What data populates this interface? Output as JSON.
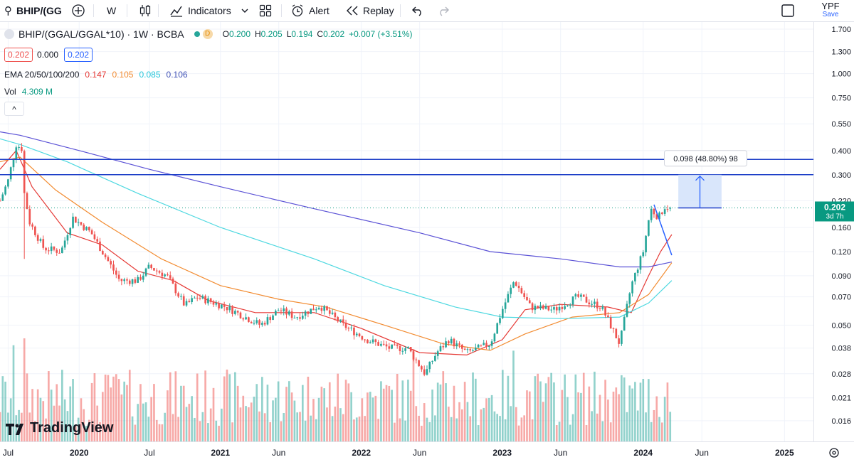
{
  "toolbar": {
    "symbol": "BHIP/(GG",
    "interval": "W",
    "indicators": "Indicators",
    "alert": "Alert",
    "replay": "Replay",
    "right_symbol": "YPF",
    "right_save": "Save"
  },
  "legend": {
    "title": "BHIP/(GGAL/GGAL*10) · 1W · BCBA",
    "d_badge": "D",
    "ohlc": {
      "o_label": "O",
      "o": "0.200",
      "h_label": "H",
      "h": "0.205",
      "l_label": "L",
      "l": "0.194",
      "c_label": "C",
      "c": "0.202",
      "change": "+0.007 (+3.51%)"
    },
    "price_boxes": [
      "0.202",
      "0.000",
      "0.202"
    ],
    "ema_label": "EMA 20/50/100/200",
    "ema_values": [
      "0.147",
      "0.105",
      "0.085",
      "0.106"
    ],
    "vol_label": "Vol",
    "vol_value": "4.309 M",
    "collapse": "^"
  },
  "colors": {
    "up": "#26a69a",
    "down": "#ef5350",
    "ema20": "#e53935",
    "ema50": "#f28b30",
    "ema100": "#4dd8e0",
    "ema200": "#5b52d6",
    "hline": "#1e3fc8",
    "measure_fill": "#cfe0fa",
    "measure_stroke": "#2962ff",
    "price_tag": "#089981"
  },
  "measure_label": "0.098 (48.80%) 98",
  "price_tag": {
    "price": "0.202",
    "countdown": "3d 7h"
  },
  "logo": "TradingView",
  "chart_data": {
    "type": "candlestick",
    "y_scale": "log",
    "ylim": [
      0.0125,
      1.85
    ],
    "y_ticks": [
      "1.700",
      "1.300",
      "1.000",
      "0.750",
      "0.550",
      "0.400",
      "0.300",
      "0.220",
      "0.160",
      "0.120",
      "0.090",
      "0.070",
      "0.050",
      "0.038",
      "0.028",
      "0.021",
      "0.016"
    ],
    "y_tick_values": [
      1.7,
      1.3,
      1.0,
      0.75,
      0.55,
      0.4,
      0.3,
      0.22,
      0.16,
      0.12,
      0.09,
      0.07,
      0.05,
      0.038,
      0.028,
      0.021,
      0.016
    ],
    "x_range": [
      "2019-06-10",
      "2025-03-17"
    ],
    "x_ticks": [
      {
        "label": "Jul",
        "date": "2019-07-01"
      },
      {
        "label": "2020",
        "date": "2020-01-01"
      },
      {
        "label": "Jul",
        "date": "2020-07-01"
      },
      {
        "label": "2021",
        "date": "2021-01-01"
      },
      {
        "label": "Jun",
        "date": "2021-06-01"
      },
      {
        "label": "2022",
        "date": "2022-01-01"
      },
      {
        "label": "Jun",
        "date": "2022-06-01"
      },
      {
        "label": "2023",
        "date": "2023-01-01"
      },
      {
        "label": "Jun",
        "date": "2023-06-01"
      },
      {
        "label": "2024",
        "date": "2024-01-01"
      },
      {
        "label": "Jun",
        "date": "2024-06-01"
      },
      {
        "label": "2025",
        "date": "2025-01-01"
      }
    ],
    "start_date": "2019-06-10",
    "close_anchors": [
      [
        "2019-06-10",
        0.22
      ],
      [
        "2019-07-01",
        0.28
      ],
      [
        "2019-07-22",
        0.43
      ],
      [
        "2019-08-05",
        0.41
      ],
      [
        "2019-08-12",
        0.24
      ],
      [
        "2019-08-26",
        0.17
      ],
      [
        "2019-10-01",
        0.125
      ],
      [
        "2019-11-15",
        0.12
      ],
      [
        "2019-12-15",
        0.18
      ],
      [
        "2020-02-01",
        0.15
      ],
      [
        "2020-04-15",
        0.085
      ],
      [
        "2020-06-01",
        0.085
      ],
      [
        "2020-07-01",
        0.1
      ],
      [
        "2020-08-15",
        0.09
      ],
      [
        "2020-10-01",
        0.063
      ],
      [
        "2020-11-01",
        0.07
      ],
      [
        "2021-01-15",
        0.062
      ],
      [
        "2021-04-15",
        0.05
      ],
      [
        "2021-06-01",
        0.06
      ],
      [
        "2021-07-15",
        0.055
      ],
      [
        "2021-09-15",
        0.063
      ],
      [
        "2021-11-15",
        0.05
      ],
      [
        "2022-01-15",
        0.042
      ],
      [
        "2022-03-15",
        0.038
      ],
      [
        "2022-05-01",
        0.038
      ],
      [
        "2022-06-15",
        0.028
      ],
      [
        "2022-07-15",
        0.036
      ],
      [
        "2022-08-15",
        0.042
      ],
      [
        "2022-10-01",
        0.036
      ],
      [
        "2022-12-01",
        0.04
      ],
      [
        "2023-01-01",
        0.06
      ],
      [
        "2023-02-01",
        0.085
      ],
      [
        "2023-03-15",
        0.062
      ],
      [
        "2023-05-15",
        0.06
      ],
      [
        "2023-07-15",
        0.07
      ],
      [
        "2023-09-15",
        0.062
      ],
      [
        "2023-11-01",
        0.04
      ],
      [
        "2023-12-01",
        0.08
      ],
      [
        "2024-01-01",
        0.12
      ],
      [
        "2024-01-20",
        0.2
      ],
      [
        "2024-02-10",
        0.18
      ],
      [
        "2024-02-25",
        0.205
      ],
      [
        "2024-03-11",
        0.202
      ]
    ],
    "series": [
      {
        "name": "EMA 20",
        "color": "#e53935",
        "points": [
          [
            "2019-06-10",
            0.32
          ],
          [
            "2019-07-22",
            0.4
          ],
          [
            "2019-09-01",
            0.26
          ],
          [
            "2019-12-01",
            0.15
          ],
          [
            "2020-03-01",
            0.13
          ],
          [
            "2020-06-01",
            0.095
          ],
          [
            "2020-09-01",
            0.085
          ],
          [
            "2020-12-01",
            0.067
          ],
          [
            "2021-04-01",
            0.058
          ],
          [
            "2021-09-01",
            0.058
          ],
          [
            "2022-01-01",
            0.048
          ],
          [
            "2022-06-01",
            0.036
          ],
          [
            "2022-10-01",
            0.035
          ],
          [
            "2023-01-01",
            0.042
          ],
          [
            "2023-03-01",
            0.06
          ],
          [
            "2023-06-01",
            0.064
          ],
          [
            "2023-10-01",
            0.062
          ],
          [
            "2023-12-01",
            0.058
          ],
          [
            "2024-01-15",
            0.09
          ],
          [
            "2024-02-15",
            0.12
          ],
          [
            "2024-03-15",
            0.147
          ]
        ]
      },
      {
        "name": "EMA 50",
        "color": "#f28b30",
        "points": [
          [
            "2019-06-10",
            0.35
          ],
          [
            "2019-08-01",
            0.37
          ],
          [
            "2019-11-01",
            0.25
          ],
          [
            "2020-03-01",
            0.17
          ],
          [
            "2020-08-01",
            0.11
          ],
          [
            "2021-01-01",
            0.08
          ],
          [
            "2021-06-01",
            0.068
          ],
          [
            "2021-10-01",
            0.062
          ],
          [
            "2022-03-01",
            0.05
          ],
          [
            "2022-08-01",
            0.04
          ],
          [
            "2022-12-01",
            0.037
          ],
          [
            "2023-03-01",
            0.045
          ],
          [
            "2023-07-01",
            0.055
          ],
          [
            "2023-11-01",
            0.058
          ],
          [
            "2024-01-15",
            0.072
          ],
          [
            "2024-03-15",
            0.105
          ]
        ]
      },
      {
        "name": "EMA 100",
        "color": "#4dd8e0",
        "points": [
          [
            "2019-06-10",
            0.46
          ],
          [
            "2019-08-01",
            0.43
          ],
          [
            "2019-12-01",
            0.35
          ],
          [
            "2020-06-01",
            0.24
          ],
          [
            "2021-01-01",
            0.16
          ],
          [
            "2021-09-01",
            0.11
          ],
          [
            "2022-03-01",
            0.08
          ],
          [
            "2022-09-01",
            0.062
          ],
          [
            "2023-01-01",
            0.055
          ],
          [
            "2023-06-01",
            0.054
          ],
          [
            "2023-11-01",
            0.055
          ],
          [
            "2024-01-15",
            0.065
          ],
          [
            "2024-03-15",
            0.085
          ]
        ]
      },
      {
        "name": "EMA 200",
        "color": "#5b52d6",
        "points": [
          [
            "2019-06-10",
            0.5
          ],
          [
            "2019-08-01",
            0.48
          ],
          [
            "2020-01-01",
            0.4
          ],
          [
            "2020-07-01",
            0.32
          ],
          [
            "2021-01-01",
            0.26
          ],
          [
            "2021-09-01",
            0.2
          ],
          [
            "2022-06-01",
            0.15
          ],
          [
            "2022-12-01",
            0.12
          ],
          [
            "2023-06-01",
            0.11
          ],
          [
            "2023-11-01",
            0.1
          ],
          [
            "2024-01-15",
            0.1
          ],
          [
            "2024-03-15",
            0.106
          ]
        ]
      }
    ],
    "horizontal_lines": [
      0.36,
      0.3
    ],
    "trend_line": [
      [
        "2024-01-29",
        0.21
      ],
      [
        "2024-03-15",
        0.115
      ]
    ],
    "measure": {
      "from_date": "2024-04-01",
      "to_date": "2024-07-22",
      "from_price": 0.202,
      "to_price": 0.3
    },
    "current_price": 0.202,
    "volume_max": 4.309
  }
}
